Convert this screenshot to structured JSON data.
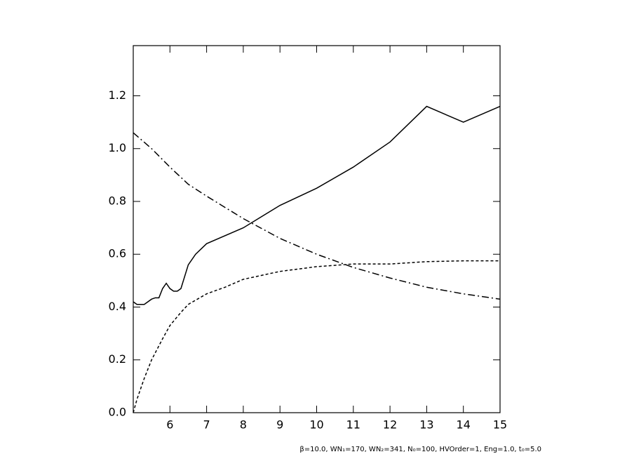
{
  "chart_data": {
    "type": "line",
    "footnote": "β=10.0, WN₁=170, WN₂=341, N₀=100, HVOrder=1, Eng=1.0, t₀=5.0",
    "xlim": [
      5,
      15
    ],
    "xticks": [
      6,
      7,
      8,
      9,
      10,
      11,
      12,
      13,
      14,
      15
    ],
    "ylim": [
      0,
      1.39
    ],
    "yticks": [
      {
        "value": 0,
        "label": "0.0"
      },
      0.2,
      0.4,
      0.6,
      0.8,
      {
        "value": 1,
        "label": "1.0"
      },
      1.2
    ],
    "series": [
      {
        "color": "#000000",
        "dash": "solid",
        "x": [
          5,
          5.1,
          5.3,
          5.5,
          5.6,
          5.7,
          5.8,
          5.9,
          6.0,
          6.1,
          6.2,
          6.3,
          6.5,
          6.7,
          7,
          8,
          9,
          10,
          11,
          12,
          13,
          14,
          15
        ],
        "values": [
          0.42,
          0.41,
          0.41,
          0.43,
          0.435,
          0.435,
          0.47,
          0.49,
          0.47,
          0.46,
          0.46,
          0.47,
          0.56,
          0.6,
          0.64,
          0.7,
          0.785,
          0.85,
          0.93,
          1.025,
          1.16,
          1.1,
          1.16
        ]
      },
      {
        "color": "#000000",
        "dash": "dashed",
        "x": [
          5,
          5.1,
          5.3,
          5.5,
          5.8,
          6,
          6.3,
          6.5,
          7,
          7.5,
          8,
          9,
          10,
          11,
          12,
          13,
          14,
          15
        ],
        "values": [
          0,
          0.05,
          0.13,
          0.2,
          0.28,
          0.33,
          0.38,
          0.41,
          0.45,
          0.475,
          0.505,
          0.535,
          0.553,
          0.563,
          0.563,
          0.572,
          0.575,
          0.575
        ]
      },
      {
        "color": "#000000",
        "dash": "dashdot",
        "x": [
          5,
          5.5,
          6,
          6.5,
          7,
          8,
          9,
          10,
          11,
          12,
          13,
          14,
          15
        ],
        "values": [
          1.06,
          1.0,
          0.93,
          0.865,
          0.82,
          0.735,
          0.66,
          0.6,
          0.55,
          0.51,
          0.475,
          0.45,
          0.43
        ]
      }
    ]
  }
}
